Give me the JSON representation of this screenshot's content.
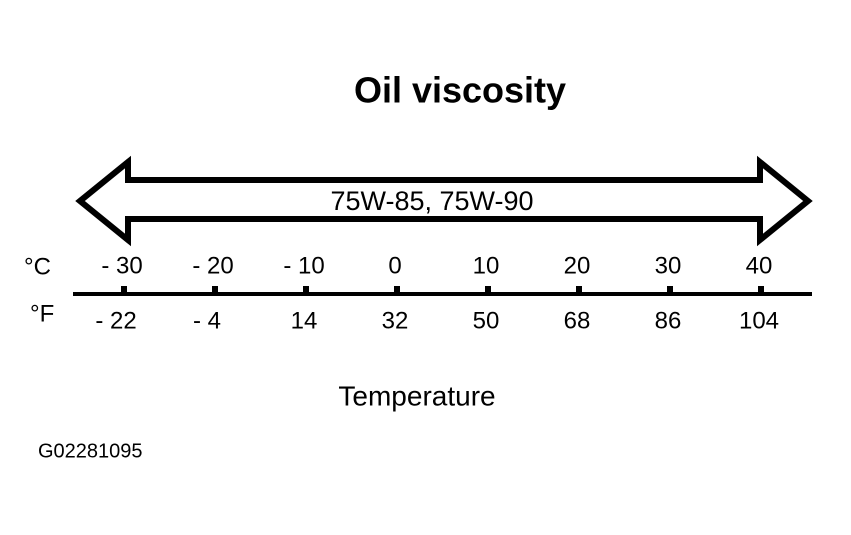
{
  "header": {
    "title": "Oil viscosity"
  },
  "range": {
    "label": "75W-85, 75W-90"
  },
  "scale": {
    "celsius": {
      "unit": "°C",
      "labels": [
        "- 30",
        "- 20",
        "- 10",
        "0",
        "10",
        "20",
        "30",
        "40"
      ]
    },
    "fahrenheit": {
      "unit": "°F",
      "labels": [
        "- 22",
        "- 4",
        "14",
        "32",
        "50",
        "68",
        "86",
        "104"
      ]
    },
    "axis_label": "Temperature"
  },
  "footer": {
    "code": "G02281095"
  }
}
